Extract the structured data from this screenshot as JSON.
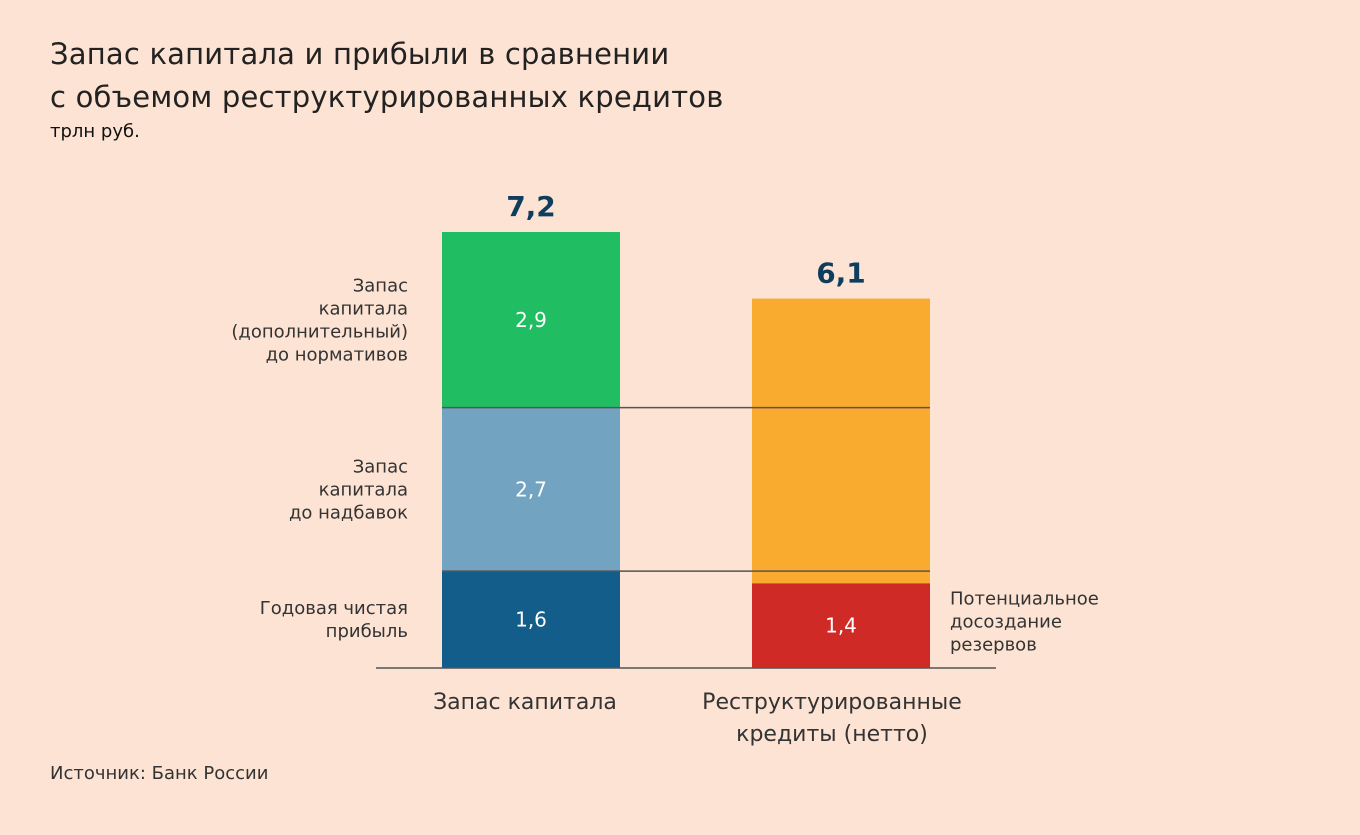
{
  "chart_data": {
    "type": "bar",
    "stacked": true,
    "title_lines": [
      "Запас капитала и прибыли в сравнении",
      "с объемом реструктурированных кредитов"
    ],
    "subtitle": "трлн руб.",
    "source": "Источник: Банк России",
    "categories": [
      "Запас капитала",
      "Реструктурированные кредиты (нетто)"
    ],
    "category_label_lines": [
      [
        "Запас капитала"
      ],
      [
        "Реструктурированные",
        "кредиты (нетто)"
      ]
    ],
    "totals": [
      {
        "value": 7.2,
        "label": "7,2"
      },
      {
        "value": 6.1,
        "label": "6,1"
      }
    ],
    "series": [
      {
        "name": "Годовая чистая прибыль",
        "label_lines": [
          "Годовая чистая",
          "прибыль"
        ],
        "color": "#135d8a",
        "values": [
          1.6,
          null
        ],
        "value_labels": [
          "1,6",
          null
        ]
      },
      {
        "name": "Запас капитала до надбавок",
        "label_lines": [
          "Запас",
          "капитала",
          "до надбавок"
        ],
        "color": "#72a4c2",
        "values": [
          2.7,
          null
        ],
        "value_labels": [
          "2,7",
          null
        ]
      },
      {
        "name": "Запас капитала (дополнительный) до нормативов",
        "label_lines": [
          "Запас",
          "капитала",
          "(дополнительный)",
          "до нормативов"
        ],
        "color": "#20bd62",
        "values": [
          2.9,
          null
        ],
        "value_labels": [
          "2,9",
          null
        ]
      },
      {
        "name": "Потенциальное досоздание резервов",
        "label_lines": [
          "Потенциальное",
          "досоздание",
          "резервов"
        ],
        "color": "#d02a27",
        "values": [
          null,
          1.4
        ],
        "value_labels": [
          null,
          "1,4"
        ]
      },
      {
        "name": "Реструктурированные кредиты",
        "color": "#f9ab2f",
        "values": [
          null,
          4.7
        ],
        "value_labels": [
          null,
          null
        ]
      }
    ],
    "ylim": [
      0,
      7.2
    ],
    "grid": false,
    "reference_lines": [
      1.6,
      4.3
    ]
  }
}
